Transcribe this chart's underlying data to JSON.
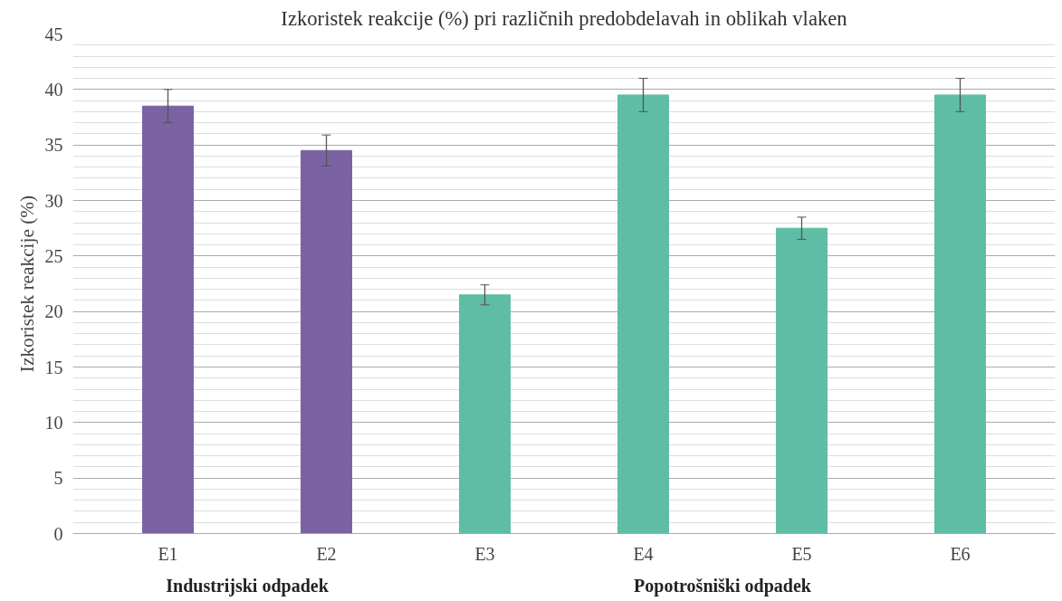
{
  "chart_data": {
    "type": "bar",
    "title": "Izkoristek reakcije (%) pri različnih predobdelavah in oblikah vlaken",
    "ylabel": "Izkoristek reakcije (%)",
    "categories": [
      "E1",
      "E2",
      "E3",
      "E4",
      "E5",
      "E6"
    ],
    "values": [
      38.5,
      34.5,
      21.5,
      39.5,
      27.5,
      39.5
    ],
    "errors": [
      1.5,
      1.4,
      0.9,
      1.5,
      1.0,
      1.5
    ],
    "colors": [
      "#7b62a3",
      "#7b62a3",
      "#5fbda5",
      "#5fbda5",
      "#5fbda5",
      "#5fbda5"
    ],
    "ylim": [
      0,
      45
    ],
    "yticks": [
      0,
      5,
      10,
      15,
      20,
      25,
      30,
      35,
      40,
      45
    ],
    "grid": "y",
    "annotations": [
      "Industrijski odpadek",
      "Popotrošniški odpadek"
    ]
  }
}
